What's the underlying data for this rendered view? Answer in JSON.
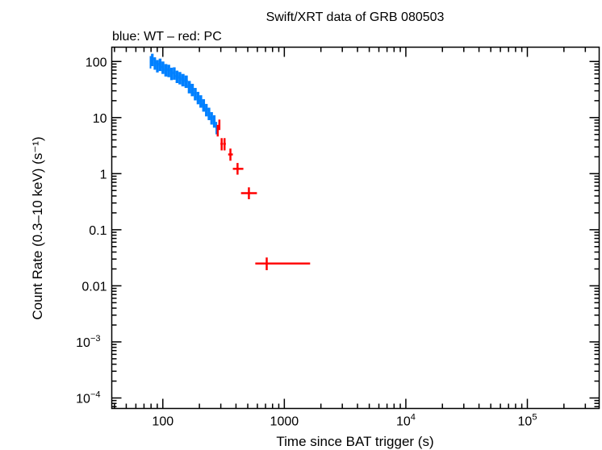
{
  "chart_data": {
    "type": "scatter",
    "title": "Swift/XRT data of GRB 080503",
    "subtitle": "blue: WT – red: PC",
    "xlabel": "Time since BAT trigger (s)",
    "ylabel": "Count Rate (0.3–10 keV) (s⁻¹)",
    "xscale": "log",
    "yscale": "log",
    "xlim": [
      38,
      390000
    ],
    "ylim": [
      6.5e-05,
      180
    ],
    "xticks": [
      {
        "v": 100,
        "label": "100"
      },
      {
        "v": 1000,
        "label": "1000"
      },
      {
        "v": 10000,
        "label": "10",
        "sup": "4"
      },
      {
        "v": 100000,
        "label": "10",
        "sup": "5"
      }
    ],
    "yticks": [
      {
        "v": 100,
        "label": "100"
      },
      {
        "v": 10,
        "label": "10"
      },
      {
        "v": 1,
        "label": "1"
      },
      {
        "v": 0.1,
        "label": "0.1"
      },
      {
        "v": 0.01,
        "label": "0.01"
      },
      {
        "v": 0.001,
        "label": "10",
        "sup": "−3"
      },
      {
        "v": 0.0001,
        "label": "10",
        "sup": "−4"
      }
    ],
    "grid": false,
    "series": [
      {
        "color": "#0080ff",
        "points": [
          {
            "t": 78,
            "r": 100
          },
          {
            "t": 82,
            "r": 110
          },
          {
            "t": 86,
            "r": 95
          },
          {
            "t": 90,
            "r": 85
          },
          {
            "t": 95,
            "r": 90
          },
          {
            "t": 100,
            "r": 80
          },
          {
            "t": 106,
            "r": 72
          },
          {
            "t": 112,
            "r": 70
          },
          {
            "t": 118,
            "r": 62
          },
          {
            "t": 124,
            "r": 63
          },
          {
            "t": 131,
            "r": 55
          },
          {
            "t": 138,
            "r": 52
          },
          {
            "t": 146,
            "r": 48
          },
          {
            "t": 156,
            "r": 45
          },
          {
            "t": 165,
            "r": 36
          },
          {
            "t": 175,
            "r": 32
          },
          {
            "t": 185,
            "r": 27
          },
          {
            "t": 195,
            "r": 23
          },
          {
            "t": 205,
            "r": 20
          },
          {
            "t": 217,
            "r": 17
          },
          {
            "t": 228,
            "r": 14
          },
          {
            "t": 240,
            "r": 12
          },
          {
            "t": 252,
            "r": 10
          },
          {
            "t": 265,
            "r": 8.8
          },
          {
            "t": 278,
            "r": 6.7
          }
        ],
        "rel_err": 0.25
      },
      {
        "color": "#ff0000",
        "points": [
          {
            "t": 283,
            "tlo": 278,
            "thi": 288,
            "r": 6.0,
            "rlo": 4.6,
            "rhi": 7.4
          },
          {
            "t": 292,
            "tlo": 287,
            "thi": 297,
            "r": 7.5,
            "rlo": 6.0,
            "rhi": 9.2
          },
          {
            "t": 305,
            "tlo": 298,
            "thi": 312,
            "r": 3.4,
            "rlo": 2.6,
            "rhi": 4.3
          },
          {
            "t": 322,
            "tlo": 314,
            "thi": 330,
            "r": 3.4,
            "rlo": 2.6,
            "rhi": 4.3
          },
          {
            "t": 360,
            "tlo": 345,
            "thi": 377,
            "r": 2.2,
            "rlo": 1.7,
            "rhi": 2.8
          },
          {
            "t": 412,
            "tlo": 377,
            "thi": 460,
            "r": 1.22,
            "rlo": 0.96,
            "rhi": 1.55
          },
          {
            "t": 511,
            "tlo": 440,
            "thi": 595,
            "r": 0.45,
            "rlo": 0.35,
            "rhi": 0.57
          },
          {
            "t": 716,
            "tlo": 577,
            "thi": 1630,
            "r": 0.025,
            "rlo": 0.019,
            "rhi": 0.032
          }
        ]
      }
    ]
  }
}
